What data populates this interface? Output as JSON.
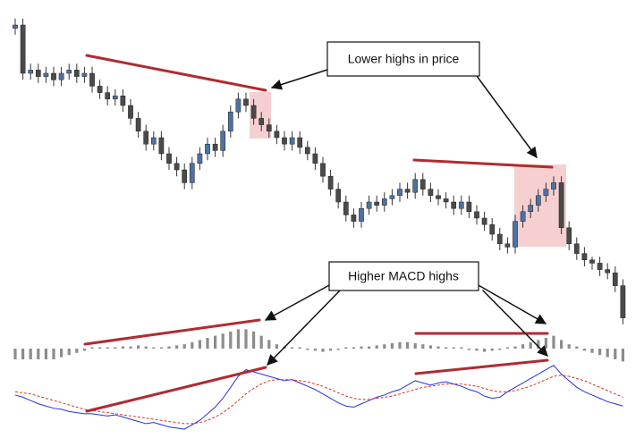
{
  "chart_data": [
    {
      "type": "candlestick",
      "annotations": [
        "Lower highs in price",
        "Higher MACD highs"
      ],
      "open": [
        94,
        95,
        80,
        81,
        79,
        80,
        78,
        80,
        81,
        79,
        80,
        76,
        74,
        72,
        73,
        70,
        66,
        62,
        58,
        60,
        55,
        52,
        50,
        46,
        52,
        55,
        58,
        56,
        62,
        68,
        72,
        70,
        66,
        64,
        62,
        60,
        58,
        60,
        57,
        55,
        52,
        48,
        44,
        40,
        36,
        34,
        38,
        40,
        39,
        41,
        42,
        44,
        43,
        47,
        44,
        42,
        41,
        40,
        38,
        40,
        37,
        35,
        33,
        30,
        27,
        26,
        34,
        37,
        39,
        42,
        44,
        46,
        32,
        27,
        24,
        22,
        21,
        19,
        18,
        14
      ],
      "high": [
        97,
        97,
        83,
        83,
        82,
        82,
        82,
        83,
        83,
        82,
        82,
        78,
        76,
        75,
        75,
        72,
        68,
        64,
        62,
        62,
        57,
        54,
        52,
        54,
        57,
        60,
        60,
        64,
        70,
        74,
        74,
        72,
        68,
        66,
        64,
        62,
        62,
        62,
        59,
        57,
        54,
        50,
        46,
        42,
        38,
        40,
        42,
        42,
        43,
        44,
        46,
        46,
        49,
        49,
        46,
        44,
        43,
        42,
        42,
        42,
        39,
        37,
        35,
        32,
        29,
        36,
        39,
        41,
        44,
        46,
        48,
        48,
        34,
        29,
        26,
        23,
        23,
        21,
        20,
        16
      ],
      "low": [
        92,
        78,
        78,
        77,
        77,
        76,
        76,
        78,
        77,
        77,
        74,
        72,
        70,
        70,
        68,
        64,
        60,
        56,
        56,
        53,
        50,
        48,
        44,
        44,
        50,
        53,
        54,
        54,
        60,
        66,
        68,
        64,
        62,
        60,
        58,
        56,
        56,
        55,
        53,
        50,
        46,
        42,
        38,
        34,
        32,
        32,
        36,
        37,
        37,
        39,
        40,
        41,
        41,
        42,
        40,
        39,
        38,
        36,
        36,
        35,
        33,
        31,
        28,
        25,
        24,
        24,
        32,
        35,
        37,
        40,
        42,
        30,
        25,
        22,
        20,
        19,
        17,
        16,
        12,
        2
      ],
      "close": [
        95,
        80,
        81,
        79,
        80,
        78,
        80,
        81,
        79,
        80,
        76,
        74,
        72,
        73,
        70,
        66,
        62,
        58,
        60,
        55,
        52,
        50,
        46,
        52,
        55,
        58,
        56,
        62,
        68,
        72,
        70,
        66,
        64,
        62,
        60,
        58,
        60,
        57,
        55,
        52,
        48,
        44,
        40,
        36,
        34,
        38,
        40,
        39,
        41,
        42,
        44,
        43,
        47,
        44,
        42,
        41,
        40,
        38,
        40,
        37,
        35,
        33,
        30,
        27,
        26,
        34,
        37,
        39,
        42,
        44,
        46,
        32,
        27,
        24,
        22,
        21,
        19,
        18,
        14,
        4
      ],
      "colors": {
        "up": "#4d72a3",
        "down": "#4a4a4a"
      },
      "ylim": [
        0,
        100
      ]
    },
    {
      "type": "bar",
      "color": "#8c8c8c",
      "values": [
        -1,
        -1,
        -1,
        -1,
        -1,
        -1,
        -0.8,
        -0.6,
        -0.4,
        -0.2,
        0.1,
        0.1,
        0,
        0.1,
        0.2,
        0.2,
        0.3,
        0.2,
        0.1,
        0.1,
        0.2,
        0.3,
        0.4,
        0.6,
        0.8,
        1,
        1.2,
        1.4,
        1.6,
        1.8,
        1.8,
        1.6,
        1.2,
        0.8,
        0.4,
        0.2,
        0.1,
        0,
        -0.1,
        -0.2,
        -0.3,
        -0.2,
        -0.1,
        0,
        0.1,
        0.2,
        0.2,
        0.3,
        0.4,
        0.5,
        0.6,
        0.6,
        0.5,
        0.4,
        0.3,
        0.2,
        0.1,
        0.1,
        0,
        -0.1,
        -0.2,
        -0.3,
        -0.2,
        -0.1,
        0.1,
        0.2,
        0.4,
        0.6,
        0.8,
        1,
        1.2,
        0.8,
        0.4,
        0.2,
        -0.2,
        -0.4,
        -0.6,
        -0.8,
        -1,
        -1.2
      ],
      "ylim": [
        -2,
        2
      ]
    },
    {
      "type": "line",
      "series": [
        {
          "color": "#2233dd",
          "values": [
            0.5,
            0.3,
            0,
            -0.3,
            -0.5,
            -0.7,
            -0.8,
            -1.0,
            -1.1,
            -1.2,
            -1.2,
            -1.3,
            -1.4,
            -1.3,
            -1.5,
            -1.7,
            -1.9,
            -2.1,
            -2.0,
            -2.2,
            -2.4,
            -2.5,
            -2.6,
            -2.2,
            -1.8,
            -1.2,
            -0.6,
            0.2,
            1.2,
            2.2,
            2.8,
            2.6,
            2.4,
            2.2,
            2.0,
            1.8,
            1.9,
            1.6,
            1.3,
            1.0,
            0.6,
            0.2,
            -0.2,
            -0.5,
            -0.6,
            -0.3,
            0,
            0.3,
            0.5,
            0.8,
            1.0,
            1.4,
            1.8,
            1.6,
            1.4,
            1.6,
            1.7,
            1.5,
            1.3,
            1.0,
            0.8,
            0.4,
            0.2,
            0.3,
            0.8,
            1.2,
            1.6,
            2.0,
            2.4,
            2.8,
            3.2,
            2.4,
            1.8,
            1.2,
            0.8,
            0.5,
            0.2,
            -0.1,
            -0.3,
            -0.5
          ]
        },
        {
          "color": "#dd3322",
          "dashed": true,
          "values": [
            0.8,
            0.7,
            0.6,
            0.4,
            0.2,
            0,
            -0.2,
            -0.4,
            -0.6,
            -0.8,
            -0.9,
            -1.0,
            -1.1,
            -1.2,
            -1.3,
            -1.4,
            -1.5,
            -1.6,
            -1.7,
            -1.8,
            -1.9,
            -2.0,
            -2.1,
            -2.1,
            -2.0,
            -1.8,
            -1.5,
            -1.1,
            -0.6,
            0,
            0.6,
            1.1,
            1.5,
            1.8,
            1.9,
            1.9,
            1.9,
            1.8,
            1.7,
            1.5,
            1.3,
            1.0,
            0.7,
            0.4,
            0.2,
            0.1,
            0.1,
            0.2,
            0.3,
            0.4,
            0.6,
            0.8,
            1.0,
            1.2,
            1.3,
            1.4,
            1.5,
            1.5,
            1.5,
            1.4,
            1.3,
            1.1,
            0.9,
            0.8,
            0.8,
            0.9,
            1.1,
            1.3,
            1.6,
            1.9,
            2.2,
            2.3,
            2.2,
            2.0,
            1.8,
            1.5,
            1.2,
            0.9,
            0.6,
            0.3
          ]
        }
      ],
      "ylim": [
        -3,
        3.5
      ]
    }
  ]
}
